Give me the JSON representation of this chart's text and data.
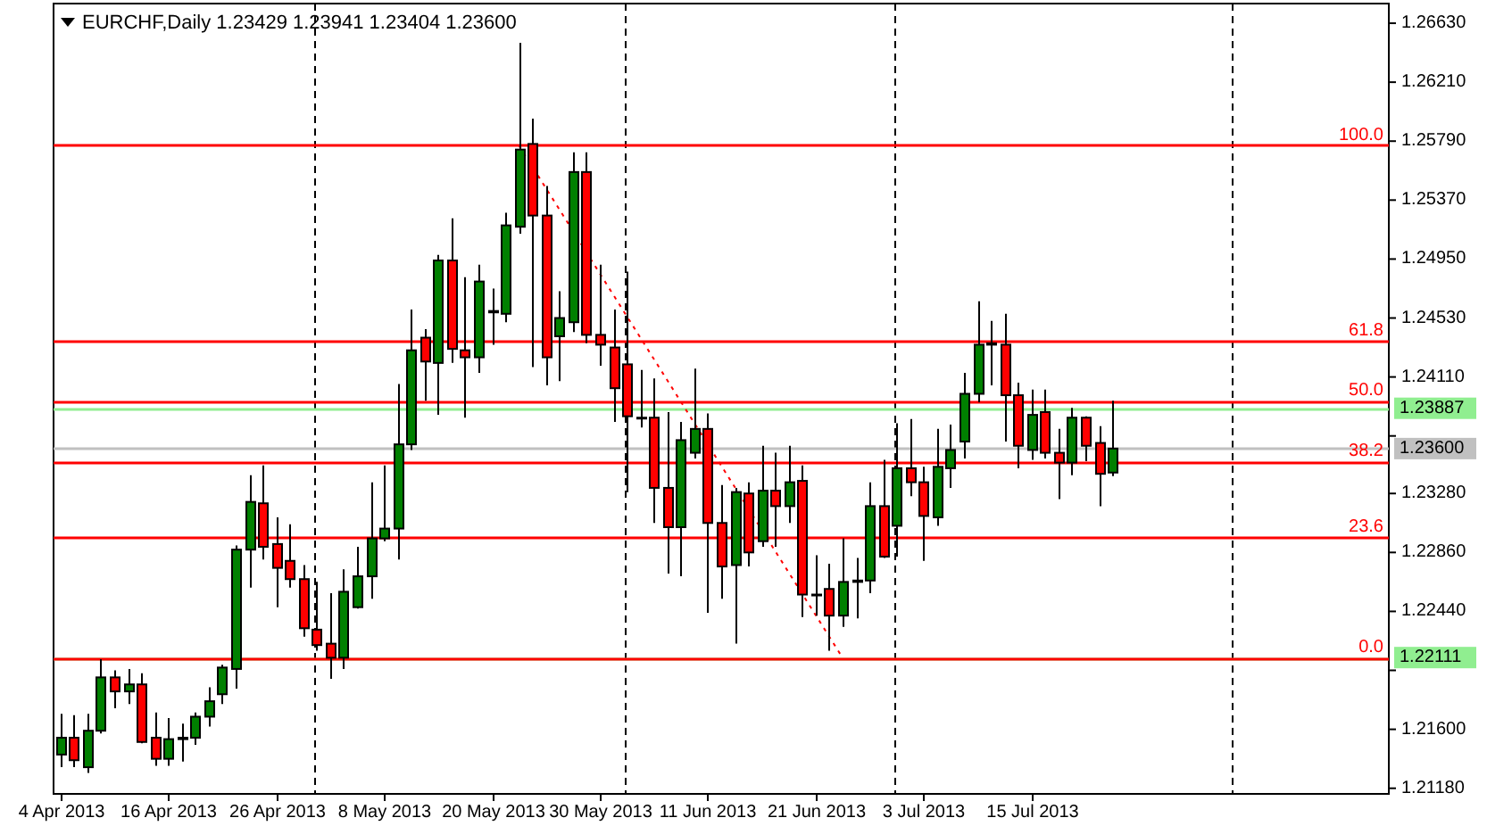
{
  "chart_data": {
    "type": "candlestick",
    "title": "EURCHF,Daily  1.23429 1.23941 1.23404 1.23600",
    "categories": [
      "4 Apr 2013",
      null,
      null,
      null,
      null,
      null,
      null,
      null,
      "16 Apr 2013",
      null,
      null,
      null,
      null,
      null,
      null,
      null,
      "26 Apr 2013",
      null,
      null,
      null,
      null,
      null,
      null,
      null,
      "8 May 2013",
      null,
      null,
      null,
      null,
      null,
      null,
      null,
      "20 May 2013",
      null,
      null,
      null,
      null,
      null,
      null,
      null,
      "30 May 2013",
      null,
      null,
      null,
      null,
      null,
      null,
      null,
      "11 Jun 2013",
      null,
      null,
      null,
      null,
      null,
      null,
      null,
      "21 Jun 2013",
      null,
      null,
      null,
      null,
      null,
      null,
      null,
      "3 Jul 2013",
      null,
      null,
      null,
      null,
      null,
      null,
      null,
      "15 Jul 2013",
      null,
      null,
      null,
      null,
      null,
      null,
      null,
      null,
      null,
      null,
      null,
      null,
      null,
      null,
      null,
      null,
      null,
      null,
      null,
      null,
      null,
      null,
      null,
      null,
      null,
      null
    ],
    "ohlc": [
      [
        1.2142,
        1.2171,
        1.2133,
        1.2154
      ],
      [
        1.2154,
        1.217,
        1.2133,
        1.2138
      ],
      [
        1.2133,
        1.2171,
        1.2129,
        1.2159
      ],
      [
        1.2159,
        1.221,
        1.2157,
        1.2197
      ],
      [
        1.2197,
        1.2202,
        1.2175,
        1.2187
      ],
      [
        1.2187,
        1.2203,
        1.2178,
        1.2192
      ],
      [
        1.2192,
        1.22,
        1.215,
        1.2151
      ],
      [
        1.2154,
        1.2172,
        1.2134,
        1.2139
      ],
      [
        1.2139,
        1.2168,
        1.2134,
        1.2153
      ],
      [
        1.2153,
        1.2164,
        1.2137,
        1.2154
      ],
      [
        1.2154,
        1.2172,
        1.2149,
        1.2169
      ],
      [
        1.2169,
        1.219,
        1.2162,
        1.218
      ],
      [
        1.2185,
        1.2206,
        1.2178,
        1.2204
      ],
      [
        1.2203,
        1.2291,
        1.2189,
        1.2288
      ],
      [
        1.2288,
        1.2341,
        1.2261,
        1.2322
      ],
      [
        1.2321,
        1.2348,
        1.2281,
        1.229
      ],
      [
        1.2292,
        1.2311,
        1.2247,
        1.2275
      ],
      [
        1.228,
        1.2306,
        1.2261,
        1.2267
      ],
      [
        1.2267,
        1.2277,
        1.2226,
        1.2232
      ],
      [
        1.2231,
        1.2265,
        1.2216,
        1.222
      ],
      [
        1.2221,
        1.2257,
        1.2196,
        1.2211
      ],
      [
        1.2211,
        1.2274,
        1.2203,
        1.2258
      ],
      [
        1.2247,
        1.229,
        1.2246,
        1.2269
      ],
      [
        1.2269,
        1.2336,
        1.2253,
        1.2296
      ],
      [
        1.2296,
        1.2348,
        1.2294,
        1.2303
      ],
      [
        1.2303,
        1.2406,
        1.2281,
        1.2363
      ],
      [
        1.2363,
        1.2459,
        1.2359,
        1.243
      ],
      [
        1.2439,
        1.2445,
        1.2394,
        1.2422
      ],
      [
        1.2421,
        1.2498,
        1.2384,
        1.2494
      ],
      [
        1.2494,
        1.2524,
        1.2421,
        1.2431
      ],
      [
        1.243,
        1.2482,
        1.2382,
        1.2425
      ],
      [
        1.2425,
        1.2491,
        1.2414,
        1.2479
      ],
      [
        1.2457,
        1.2474,
        1.2434,
        1.2458
      ],
      [
        1.2456,
        1.2528,
        1.245,
        1.2519
      ],
      [
        1.2518,
        1.2649,
        1.2513,
        1.2573
      ],
      [
        1.2577,
        1.2595,
        1.2418,
        1.2526
      ],
      [
        1.2526,
        1.2547,
        1.2405,
        1.2425
      ],
      [
        1.244,
        1.2472,
        1.2408,
        1.2453
      ],
      [
        1.245,
        1.2571,
        1.2443,
        1.2557
      ],
      [
        1.2557,
        1.2571,
        1.2435,
        1.2441
      ],
      [
        1.2441,
        1.2491,
        1.2419,
        1.2434
      ],
      [
        1.2432,
        1.2459,
        1.2379,
        1.2403
      ],
      [
        1.242,
        1.2486,
        1.2329,
        1.2383
      ],
      [
        1.2382,
        1.2416,
        1.2375,
        1.2382
      ],
      [
        1.2382,
        1.241,
        1.2307,
        1.2332
      ],
      [
        1.2332,
        1.2386,
        1.2271,
        1.2304
      ],
      [
        1.2304,
        1.2379,
        1.2269,
        1.2366
      ],
      [
        1.2357,
        1.2417,
        1.2353,
        1.2374
      ],
      [
        1.2374,
        1.2385,
        1.2243,
        1.2307
      ],
      [
        1.2307,
        1.2334,
        1.2253,
        1.2276
      ],
      [
        1.2277,
        1.2332,
        1.2221,
        1.2329
      ],
      [
        1.2328,
        1.2336,
        1.2276,
        1.2286
      ],
      [
        1.2294,
        1.2362,
        1.229,
        1.233
      ],
      [
        1.233,
        1.2357,
        1.229,
        1.2319
      ],
      [
        1.2319,
        1.2362,
        1.2307,
        1.2336
      ],
      [
        1.2337,
        1.2348,
        1.224,
        1.2256
      ],
      [
        1.2256,
        1.2284,
        1.2241,
        1.2256
      ],
      [
        1.226,
        1.2278,
        1.2216,
        1.2241
      ],
      [
        1.2241,
        1.2296,
        1.2233,
        1.2265
      ],
      [
        1.2265,
        1.2282,
        1.2239,
        1.2266
      ],
      [
        1.2266,
        1.2336,
        1.2257,
        1.2319
      ],
      [
        1.2319,
        1.2352,
        1.2282,
        1.2283
      ],
      [
        1.2305,
        1.2378,
        1.2283,
        1.2346
      ],
      [
        1.2346,
        1.2381,
        1.2326,
        1.2336
      ],
      [
        1.2336,
        1.2347,
        1.228,
        1.2312
      ],
      [
        1.2311,
        1.2374,
        1.2305,
        1.2347
      ],
      [
        1.2346,
        1.2377,
        1.2332,
        1.2359
      ],
      [
        1.2365,
        1.2414,
        1.2353,
        1.2399
      ],
      [
        1.2399,
        1.2465,
        1.2393,
        1.2434
      ],
      [
        1.2434,
        1.2451,
        1.2405,
        1.2435
      ],
      [
        1.2434,
        1.2456,
        1.2365,
        1.2398
      ],
      [
        1.2398,
        1.2407,
        1.2346,
        1.2362
      ],
      [
        1.2359,
        1.2402,
        1.2352,
        1.2384
      ],
      [
        1.2386,
        1.2402,
        1.2353,
        1.2357
      ],
      [
        1.2357,
        1.2374,
        1.2324,
        1.235
      ],
      [
        1.235,
        1.2389,
        1.2341,
        1.2382
      ],
      [
        1.2382,
        1.2383,
        1.2351,
        1.2362
      ],
      [
        1.2364,
        1.2376,
        1.2319,
        1.2342
      ],
      [
        1.23429,
        1.23941,
        1.23404,
        1.236
      ],
      null,
      null,
      null,
      null,
      null,
      null,
      null,
      null,
      null,
      null,
      null,
      null,
      null,
      null,
      null,
      null,
      null,
      null,
      null,
      null
    ],
    "series": [
      {
        "type": "line",
        "values": [
          null,
          null,
          null,
          null,
          null,
          null,
          null,
          null,
          null,
          null,
          null,
          null,
          null,
          null,
          null,
          null,
          null,
          null,
          null,
          null,
          null,
          null,
          null,
          null,
          null,
          null,
          null,
          null,
          null,
          null,
          null,
          null,
          null,
          null,
          1.2576,
          null,
          null,
          null,
          null,
          null,
          null,
          null,
          null,
          null,
          null,
          null,
          null,
          null,
          null,
          null,
          null,
          null,
          null,
          null,
          null,
          null,
          null,
          null,
          1.2211,
          null,
          null,
          null,
          null,
          null,
          null,
          null,
          null,
          null,
          null,
          null,
          null,
          null,
          null,
          null,
          null,
          null,
          null,
          null,
          null,
          null,
          null,
          null,
          null,
          null,
          null,
          null,
          null,
          null,
          null,
          null,
          null,
          null,
          null,
          null,
          null,
          null,
          null,
          null,
          null
        ],
        "color": "#ff0000",
        "line_style": "dotted"
      }
    ],
    "ylim": [
      1.2114,
      1.2677
    ],
    "yticks": [
      {
        "value": 1.2663,
        "label": "1.26630"
      },
      {
        "value": 1.2621,
        "label": "1.26210"
      },
      {
        "value": 1.2579,
        "label": "1.25790"
      },
      {
        "value": 1.2537,
        "label": "1.25370"
      },
      {
        "value": 1.2495,
        "label": "1.24950"
      },
      {
        "value": 1.2453,
        "label": "1.24530"
      },
      {
        "value": 1.2411,
        "label": "1.24110"
      },
      {
        "value": 1.2369,
        "label": null
      },
      {
        "value": 1.2328,
        "label": "1.23280"
      },
      {
        "value": 1.2286,
        "label": "1.22860"
      },
      {
        "value": 1.2244,
        "label": "1.22440"
      },
      {
        "value": 1.2202,
        "label": null
      },
      {
        "value": 1.216,
        "label": "1.21600"
      },
      {
        "value": 1.2118,
        "label": "1.21180"
      }
    ],
    "ref_lines": [
      {
        "axis": "y",
        "value": 1.23887,
        "label": "1.23887",
        "color": "#90ee90"
      },
      {
        "axis": "y",
        "value": 1.22111,
        "label": "1.22111",
        "color": "#90ee90"
      },
      {
        "axis": "y",
        "value": 1.236,
        "label": "1.23600",
        "color": "#c0c0c0"
      },
      {
        "axis": "y",
        "value": 1.2576,
        "color": "#ff0000"
      },
      {
        "axis": "y",
        "value": 1.2437,
        "color": "#ff0000"
      },
      {
        "axis": "y",
        "value": 1.2394,
        "color": "#ff0000"
      },
      {
        "axis": "y",
        "value": 1.2351,
        "color": "#ff0000"
      },
      {
        "axis": "y",
        "value": 1.2297,
        "color": "#ff0000"
      },
      {
        "axis": "y",
        "value": 1.2211,
        "color": "#ff0000"
      }
    ],
    "annotations": [
      {
        "text": "100.0",
        "y": 1.2576
      },
      {
        "text": "61.8",
        "y": 1.2437
      },
      {
        "text": "50.0",
        "y": 1.2394
      },
      {
        "text": "38.2",
        "y": 1.2351
      },
      {
        "text": "23.6",
        "y": 1.2297
      },
      {
        "text": "0.0",
        "y": 1.2211
      }
    ]
  }
}
